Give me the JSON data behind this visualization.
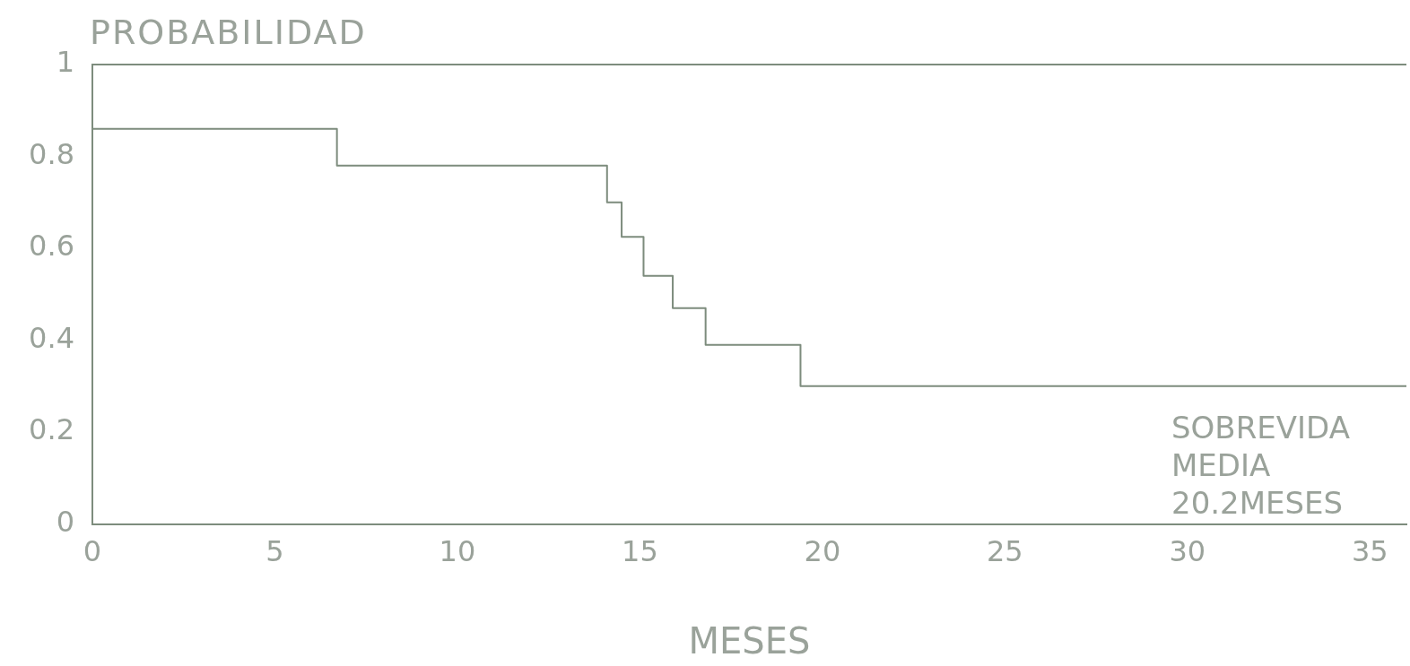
{
  "chart_data": {
    "type": "step",
    "ylabel": "PROBABILIDAD",
    "xlabel": "MESES",
    "x": [
      0,
      6.7,
      14.1,
      14.5,
      15.1,
      15.9,
      16.8,
      19.4,
      36
    ],
    "values": [
      0.86,
      0.78,
      0.7,
      0.625,
      0.54,
      0.47,
      0.39,
      0.3,
      0.3
    ],
    "color": "#7d8c7d",
    "xlim": [
      0,
      36
    ],
    "xticks": [
      0,
      5,
      10,
      15,
      20,
      25,
      30,
      35
    ],
    "ylim": [
      0,
      1
    ],
    "yticks": [
      0,
      0.2,
      0.4,
      0.6,
      0.8,
      1
    ],
    "grid": false,
    "legend": false,
    "marker": "none",
    "line_style": "solid",
    "annotations": [
      "SOBREVIDA",
      "MEDIA",
      "20.2MESES"
    ]
  }
}
